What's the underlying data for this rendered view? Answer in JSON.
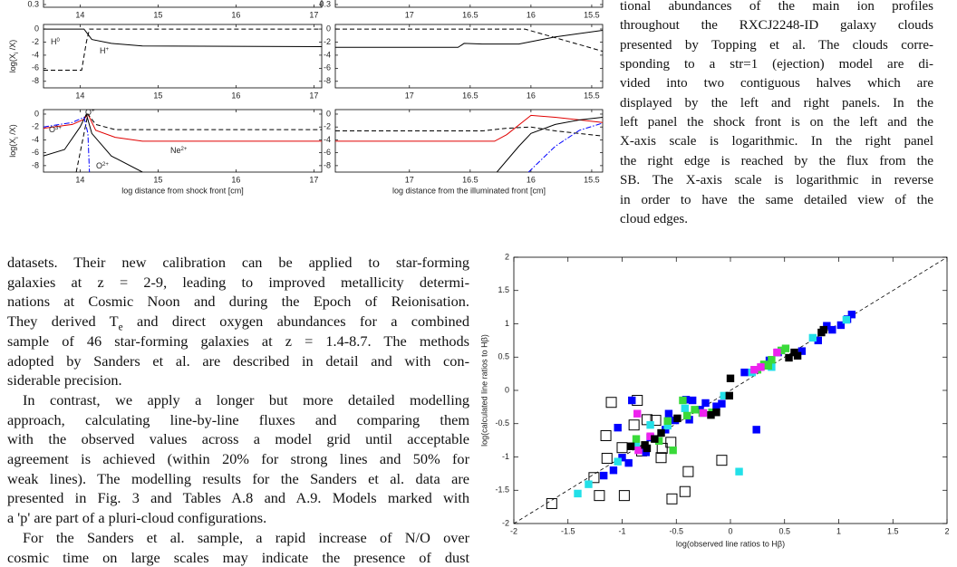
{
  "chart_data": [
    {
      "type": "line",
      "xlim": [
        13.53,
        17.1
      ],
      "xticks": [
        14,
        15,
        16,
        17
      ],
      "ylim": [
        0.28,
        1
      ],
      "yticks": [
        0.3
      ],
      "series": []
    },
    {
      "type": "line",
      "xlim": [
        17.61,
        15.41
      ],
      "xticks": [
        17,
        16.5,
        16,
        15.5
      ],
      "ylim": [
        0.28,
        1
      ],
      "yticks": [
        0.3
      ],
      "series": []
    },
    {
      "type": "line",
      "xlim": [
        13.53,
        17.1
      ],
      "xticks": [
        14,
        15,
        16,
        17
      ],
      "ylim": [
        -9,
        0.7
      ],
      "yticks": [
        0,
        -2,
        -4,
        -6,
        -8
      ],
      "y_label": {
        "parts": [
          "log(X",
          "i",
          " /X)"
        ]
      },
      "series": [
        {
          "color": "#000000",
          "style": "solid",
          "x": [
            13.53,
            14.05,
            14.1,
            14.15,
            14.4,
            14.8,
            17.1
          ],
          "values": [
            0,
            0,
            -0.8,
            -1.6,
            -2.2,
            -2.6,
            -2.7
          ]
        },
        {
          "color": "#000000",
          "style": "dashed",
          "x": [
            13.53,
            14.02,
            14.08,
            14.12,
            17.1
          ],
          "values": [
            -6.3,
            -6.3,
            -2,
            0,
            0
          ]
        }
      ],
      "annotations": [
        {
          "base": "H",
          "sup": "0"
        },
        {
          "base": "H",
          "sup": "+"
        }
      ]
    },
    {
      "type": "line",
      "xlim": [
        17.61,
        15.41
      ],
      "xticks": [
        17,
        16.5,
        16,
        15.5
      ],
      "ylim": [
        -9,
        0.7
      ],
      "yticks": [
        0,
        -2,
        -4,
        -6,
        -8
      ],
      "series": [
        {
          "color": "#000000",
          "style": "solid",
          "x": [
            17.61,
            16.6,
            16.55,
            16.4,
            16.1,
            15.8,
            15.41
          ],
          "values": [
            -2.8,
            -2.8,
            -2.2,
            -2.3,
            -2.3,
            -1.2,
            -0.2
          ]
        },
        {
          "color": "#000000",
          "style": "dashed",
          "x": [
            17.61,
            16.05,
            15.9,
            15.41
          ],
          "values": [
            0,
            0,
            -0.8,
            -3.4
          ]
        }
      ]
    },
    {
      "type": "line",
      "xlim": [
        13.53,
        17.1
      ],
      "xticks": [
        14,
        15,
        16,
        17
      ],
      "ylim": [
        -9,
        0.7
      ],
      "yticks": [
        0,
        -2,
        -4,
        -6,
        -8
      ],
      "y_label": {
        "parts": [
          "log(X",
          "i",
          " /X)"
        ]
      },
      "x_label": "log distance from shock front [cm]",
      "series": [
        {
          "color": "#e00000",
          "style": "solid",
          "x": [
            13.53,
            13.9,
            14.05,
            14.1,
            14.2,
            14.45,
            14.8,
            17.1
          ],
          "values": [
            -2.2,
            -1.6,
            -0.8,
            0,
            -2.5,
            -3.6,
            -4.2,
            -4.2
          ]
        },
        {
          "color": "#000000",
          "style": "dashed",
          "x": [
            13.95,
            14.05,
            14.1,
            14.2,
            14.45,
            17.1
          ],
          "values": [
            -9,
            -3,
            0,
            -1.6,
            -2.4,
            -2.4
          ]
        },
        {
          "color": "#000000",
          "style": "solid",
          "x": [
            13.53,
            13.8,
            14.0,
            14.08,
            14.15,
            14.4,
            14.8
          ],
          "values": [
            -6.5,
            -5.5,
            -2,
            0,
            -3,
            -6.5,
            -9
          ]
        },
        {
          "color": "#0000ff",
          "style": "dashdot",
          "x": [
            13.53,
            13.9,
            14.05,
            14.1,
            14.12
          ],
          "values": [
            -2,
            -1.3,
            -0.5,
            -3,
            -9
          ]
        }
      ],
      "annotations": [
        {
          "base": "O",
          "sup": "3+"
        },
        {
          "base": "O",
          "sup": "+"
        },
        {
          "base": "Ne",
          "sup": "2+"
        },
        {
          "base": "O",
          "sup": "2+"
        }
      ]
    },
    {
      "type": "line",
      "xlim": [
        17.61,
        15.41
      ],
      "xticks": [
        17,
        16.5,
        16,
        15.5
      ],
      "ylim": [
        -9,
        0.7
      ],
      "yticks": [
        0,
        -2,
        -4,
        -6,
        -8
      ],
      "x_label": "log distance from  the illuminated front [cm]",
      "series": [
        {
          "color": "#e00000",
          "style": "solid",
          "x": [
            17.61,
            16.3,
            16.2,
            16.0,
            15.8,
            15.41
          ],
          "values": [
            -4.2,
            -4.2,
            -3.2,
            -0.2,
            -0.5,
            -1.3
          ]
        },
        {
          "color": "#000000",
          "style": "dashed",
          "x": [
            17.61,
            16.4,
            16.2,
            16.0,
            15.8,
            15.41
          ],
          "values": [
            -2.6,
            -2.6,
            -2.2,
            -2.0,
            -2.6,
            -3.4
          ]
        },
        {
          "color": "#000000",
          "style": "solid",
          "x": [
            16.28,
            16.1,
            16.0,
            15.8,
            15.6,
            15.41
          ],
          "values": [
            -9,
            -5,
            -3,
            -1.6,
            -0.9,
            -0.5
          ]
        },
        {
          "color": "#0000ff",
          "style": "dashdot",
          "x": [
            16.02,
            15.8,
            15.6,
            15.41
          ],
          "values": [
            -9,
            -5,
            -2.5,
            -1.4
          ]
        }
      ]
    },
    {
      "type": "scatter",
      "xlim": [
        -2,
        2
      ],
      "ylim": [
        -2,
        2
      ],
      "xticks": [
        -2,
        -1.5,
        -1,
        -0.5,
        0,
        0.5,
        1,
        1.5,
        2
      ],
      "yticks": [
        -2,
        -1.5,
        -1,
        -0.5,
        0,
        0.5,
        1,
        1.5,
        2
      ],
      "x_label": "log(observed line ratios to Hβ)",
      "y_label": "log(calculated line ratios to Hβ)",
      "identity_line": true,
      "series": [
        {
          "color": "#000000",
          "marker": "open",
          "x": [
            -1.65,
            -1.21,
            -0.98,
            -0.54,
            -0.42,
            -1.14,
            -0.82,
            -1.15,
            -0.89,
            -0.86,
            -1.1,
            -0.77,
            -0.64,
            -0.39,
            -0.08,
            -1.0,
            -0.55,
            -0.69,
            -1.26,
            -0.63
          ],
          "values": [
            -1.7,
            -1.58,
            -1.58,
            -1.63,
            -1.52,
            -1.02,
            -0.91,
            -0.68,
            -0.52,
            -0.15,
            -0.18,
            -0.44,
            -1.01,
            -1.22,
            -1.05,
            -0.86,
            -0.78,
            -0.45,
            -1.31,
            -0.87
          ]
        },
        {
          "color": "#0000ff",
          "marker": "filled",
          "x": [
            -0.35,
            -0.41,
            -0.91,
            -1.04,
            -1.0,
            -1.08,
            -1.17,
            -0.94,
            -0.78,
            -0.74,
            -0.6,
            -0.51,
            -0.38,
            -0.28,
            -0.23,
            -0.08,
            0.24,
            0.13,
            0.31,
            0.44,
            0.66,
            0.81,
            0.94,
            1.02,
            1.08,
            1.12,
            0.89,
            0.36,
            -0.13,
            -0.57
          ],
          "values": [
            -0.15,
            -0.14,
            -0.15,
            -0.56,
            -1.01,
            -1.2,
            -1.28,
            -1.09,
            -0.93,
            -0.71,
            -0.59,
            -0.45,
            -0.44,
            -0.29,
            -0.19,
            -0.2,
            -0.59,
            0.27,
            0.37,
            0.57,
            0.59,
            0.75,
            0.91,
            0.98,
            1.07,
            1.14,
            0.97,
            0.45,
            -0.24,
            -0.35
          ]
        },
        {
          "color": "#22e0e8",
          "marker": "filled",
          "x": [
            -1.41,
            -1.31,
            -1.04,
            -0.87,
            -0.74,
            -0.58,
            -0.42,
            -0.06,
            0.08,
            0.2,
            0.76,
            1.07,
            0.38
          ],
          "values": [
            -1.55,
            -1.41,
            -1.07,
            -0.84,
            -0.52,
            -0.53,
            -0.27,
            -0.08,
            -1.22,
            0.27,
            0.79,
            1.06,
            0.35
          ]
        },
        {
          "color": "#3ada3a",
          "marker": "filled",
          "x": [
            -0.4,
            -0.33,
            -0.26,
            -0.17,
            -0.53,
            -0.66,
            -0.58,
            0.25,
            0.31,
            0.35,
            0.38,
            0.47,
            0.51,
            -0.87,
            -0.44
          ],
          "values": [
            -0.38,
            -0.29,
            -0.34,
            -0.33,
            -0.9,
            -0.76,
            -0.46,
            0.31,
            0.39,
            0.37,
            0.46,
            0.6,
            0.63,
            -0.73,
            -0.15
          ]
        },
        {
          "color": "#ee22ee",
          "marker": "filled",
          "x": [
            -0.86,
            -0.74,
            0.22,
            0.28,
            0.43,
            -0.25,
            -0.85
          ],
          "values": [
            -0.35,
            -0.69,
            0.31,
            0.35,
            0.57,
            -0.34,
            -0.9
          ]
        },
        {
          "color": "#000000",
          "marker": "filled",
          "x": [
            0,
            -0.01,
            0.62,
            0.59,
            0.84,
            0.86,
            -0.64,
            -0.7,
            -0.79,
            -0.13,
            -0.18,
            -0.77,
            -0.49,
            0.54,
            -0.92
          ],
          "values": [
            0.18,
            -0.08,
            0.52,
            0.57,
            0.87,
            0.91,
            -0.64,
            -0.73,
            -0.82,
            -0.33,
            -0.37,
            -0.87,
            -0.42,
            0.49,
            -0.84
          ]
        }
      ]
    }
  ],
  "caption_lines": [
    "tional abundances of the main ion profiles",
    "throughout the RXCJ2248-ID galaxy clouds",
    "presented by Topping et al. The clouds corre-",
    "sponding to a str=1 (ejection) model are di-",
    "vided into two contiguous halves which are",
    "displayed by the left and right panels. In the",
    "left panel the shock front is on the left and the",
    "X-axis scale is logarithmic. In the right panel",
    "the right edge is reached by the flux from the",
    "SB. The X-axis scale is logarithmic in reverse",
    "in order to have the same detailed view of the",
    "cloud edges."
  ],
  "body_paragraphs": [
    [
      "datasets. Their new calibration can be applied to star-forming",
      "galaxies at z = 2-9, leading to improved metallicity determi-",
      "nations at Cosmic Noon and during the Epoch of Reionisation.",
      {
        "parts": [
          "They derived T",
          "e",
          "  and direct oxygen abundances for a combined"
        ]
      },
      "sample of 46 star-forming galaxies at z = 1.4-8.7. The methods",
      "adopted by Sanders et al. are described in detail and with con-",
      "siderable precision."
    ],
    [
      "In contrast, we apply a longer but more detailed modelling",
      "approach, calculating line-by-line fluxes and comparing them",
      "with the observed values across a model grid until acceptable",
      "agreement is achieved (within 20% for strong lines and 50% for",
      "weak lines). The modelling results for the Sanders et al. data are",
      "presented in Fig. 3 and Tables A.8 and A.9. Models marked with",
      "a 'p' are part of a pluri-cloud configurations."
    ],
    [
      "For the Sanders et al. sample, a rapid increase of N/O over",
      "cosmic time on large scales may indicate the presence of dust"
    ]
  ]
}
